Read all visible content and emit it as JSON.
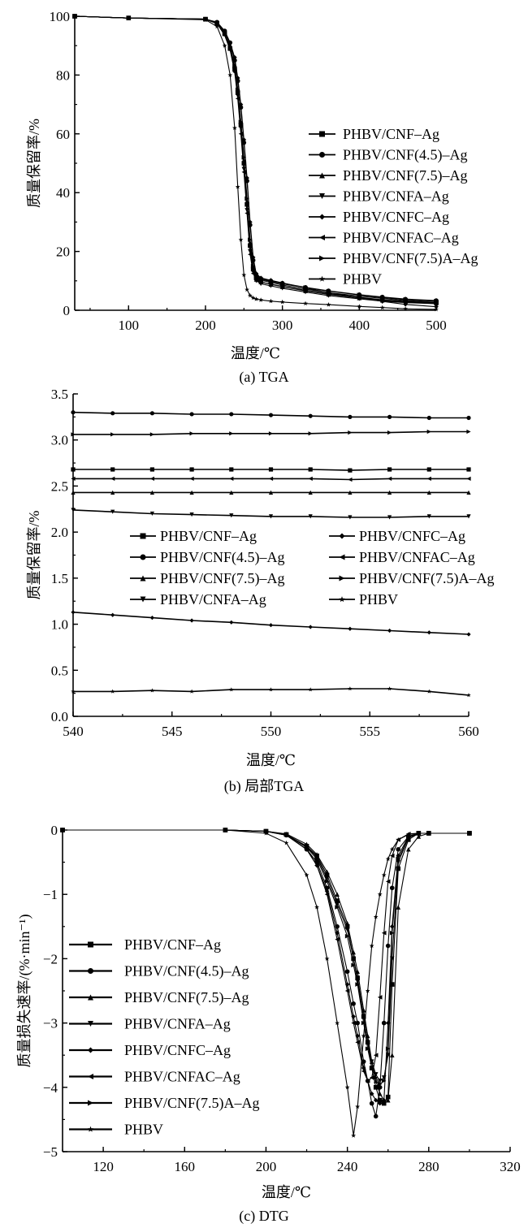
{
  "chart_data": [
    {
      "type": "line",
      "title": "(a) TGA",
      "xlabel": "温度/℃",
      "ylabel": "质量保留率/%",
      "xlim": [
        30,
        500
      ],
      "ylim": [
        0,
        100
      ],
      "xticks": [
        100,
        200,
        300,
        400,
        500
      ],
      "yticks": [
        0,
        20,
        40,
        60,
        80,
        100
      ],
      "grid": false,
      "legend_placement": "right",
      "x": [
        30,
        100,
        200,
        215,
        225,
        232,
        238,
        242,
        246,
        250,
        254,
        258,
        262,
        266,
        272,
        285,
        300,
        330,
        360,
        400,
        430,
        460,
        500
      ],
      "series": [
        {
          "name": "PHBV/CNF–Ag",
          "marker": "square",
          "values": [
            100,
            99.4,
            99,
            97.5,
            94,
            89,
            82,
            74,
            63,
            50,
            36,
            22,
            14,
            11,
            10.2,
            9.5,
            8.6,
            7.2,
            6.0,
            4.8,
            4.0,
            3.3,
            2.7
          ]
        },
        {
          "name": "PHBV/CNF(4.5)–Ag",
          "marker": "circle",
          "values": [
            100,
            99.4,
            99,
            98,
            95,
            91,
            85,
            78,
            69,
            57,
            44,
            29,
            17,
            12,
            10.8,
            10,
            9.2,
            7.8,
            6.6,
            5.3,
            4.5,
            3.8,
            3.3
          ]
        },
        {
          "name": "PHBV/CNF(7.5)–Ag",
          "marker": "triangle-up",
          "values": [
            100,
            99.4,
            99,
            97.8,
            94.5,
            90,
            83,
            75,
            64,
            51,
            37,
            23,
            14,
            10.5,
            9.6,
            8.8,
            8.0,
            6.6,
            5.4,
            4.2,
            3.4,
            2.8,
            2.4
          ]
        },
        {
          "name": "PHBV/CNFA–Ag",
          "marker": "triangle-down",
          "values": [
            100,
            99.4,
            99,
            97.6,
            94,
            89,
            82,
            73,
            62,
            48,
            34,
            20,
            13,
            10,
            9.0,
            8.3,
            7.5,
            6.2,
            5.0,
            3.9,
            3.1,
            2.6,
            2.2
          ]
        },
        {
          "name": "PHBV/CNFC–Ag",
          "marker": "diamond",
          "values": [
            100,
            99.4,
            99,
            97.8,
            95,
            91,
            86,
            79,
            70,
            58,
            45,
            30,
            18,
            12.5,
            11,
            10.2,
            9.3,
            7.6,
            6.0,
            4.3,
            3.0,
            2.0,
            1.2
          ]
        },
        {
          "name": "PHBV/CNFAC–Ag",
          "marker": "triangle-left",
          "values": [
            100,
            99.4,
            99,
            97.5,
            93.5,
            88.5,
            81,
            72,
            60,
            47,
            33,
            19,
            12.5,
            10.3,
            9.5,
            8.9,
            8.1,
            6.8,
            5.6,
            4.4,
            3.6,
            3.0,
            2.6
          ]
        },
        {
          "name": "PHBV/CNF(7.5)A–Ag",
          "marker": "triangle-right",
          "values": [
            100,
            99.4,
            99,
            97.7,
            94.3,
            89.5,
            83,
            75,
            64,
            52,
            38,
            24,
            15,
            11.5,
            10.5,
            9.8,
            9.0,
            7.7,
            6.5,
            5.2,
            4.3,
            3.6,
            3.1
          ]
        },
        {
          "name": "PHBV",
          "marker": "star",
          "values": [
            100,
            99.4,
            98.8,
            96.5,
            90,
            80,
            62,
            42,
            24,
            12,
            7,
            5,
            4.2,
            3.8,
            3.5,
            3.1,
            2.8,
            2.3,
            1.9,
            1.3,
            0.9,
            0.5,
            0.3
          ]
        }
      ]
    },
    {
      "type": "line",
      "title": "(b) 局部TGA",
      "xlabel": "温度/℃",
      "ylabel": "质量保留率/%",
      "xlim": [
        540,
        560
      ],
      "ylim": [
        0,
        3.5
      ],
      "xticks": [
        540,
        545,
        550,
        555,
        560
      ],
      "yticks": [
        "0.0",
        "0.5",
        "1.0",
        "1.5",
        "2.0",
        "2.5",
        "3.0",
        "3.5"
      ],
      "grid": false,
      "legend_placement": "center",
      "x": [
        540,
        542,
        544,
        546,
        548,
        550,
        552,
        554,
        556,
        558,
        560
      ],
      "series": [
        {
          "name": "PHBV/CNF–Ag",
          "marker": "square",
          "values": [
            2.68,
            2.68,
            2.68,
            2.68,
            2.68,
            2.68,
            2.68,
            2.67,
            2.68,
            2.68,
            2.68
          ]
        },
        {
          "name": "PHBV/CNF(4.5)–Ag",
          "marker": "circle",
          "values": [
            3.3,
            3.29,
            3.29,
            3.28,
            3.28,
            3.27,
            3.26,
            3.25,
            3.25,
            3.24,
            3.24
          ]
        },
        {
          "name": "PHBV/CNF(7.5)–Ag",
          "marker": "triangle-up",
          "values": [
            2.43,
            2.43,
            2.43,
            2.43,
            2.43,
            2.43,
            2.43,
            2.43,
            2.43,
            2.43,
            2.43
          ]
        },
        {
          "name": "PHBV/CNFA–Ag",
          "marker": "triangle-down",
          "values": [
            2.24,
            2.22,
            2.2,
            2.19,
            2.18,
            2.17,
            2.17,
            2.16,
            2.16,
            2.17,
            2.17
          ]
        },
        {
          "name": "PHBV/CNFC–Ag",
          "marker": "diamond",
          "values": [
            1.13,
            1.1,
            1.07,
            1.04,
            1.02,
            0.99,
            0.97,
            0.95,
            0.93,
            0.91,
            0.89
          ]
        },
        {
          "name": "PHBV/CNFAC–Ag",
          "marker": "triangle-left",
          "values": [
            2.58,
            2.58,
            2.58,
            2.58,
            2.58,
            2.58,
            2.58,
            2.57,
            2.58,
            2.58,
            2.58
          ]
        },
        {
          "name": "PHBV/CNF(7.5)A–Ag",
          "marker": "triangle-right",
          "values": [
            3.06,
            3.06,
            3.06,
            3.07,
            3.07,
            3.07,
            3.07,
            3.08,
            3.08,
            3.09,
            3.09
          ]
        },
        {
          "name": "PHBV",
          "marker": "star",
          "values": [
            0.27,
            0.27,
            0.28,
            0.27,
            0.29,
            0.29,
            0.29,
            0.3,
            0.3,
            0.27,
            0.23
          ]
        }
      ]
    },
    {
      "type": "line",
      "title": "(c) DTG",
      "xlabel": "温度/℃",
      "ylabel": "质量损失速率/(%·min⁻¹)",
      "xlim": [
        100,
        320
      ],
      "ylim": [
        -5,
        0
      ],
      "xticks": [
        120,
        160,
        200,
        240,
        280,
        320
      ],
      "yticks": [
        "−5",
        "−4",
        "−3",
        "−2",
        "−1",
        "0"
      ],
      "grid": false,
      "legend_placement": "left",
      "x": [
        100,
        180,
        200,
        210,
        220,
        225,
        230,
        235,
        240,
        243,
        245,
        248,
        250,
        252,
        254,
        256,
        258,
        260,
        262,
        265,
        270,
        275,
        280,
        300
      ],
      "series": [
        {
          "name": "PHBV/CNF–Ag",
          "marker": "square",
          "values": [
            0,
            0,
            -0.02,
            -0.07,
            -0.25,
            -0.4,
            -0.7,
            -1.1,
            -1.5,
            -2.0,
            -2.3,
            -2.9,
            -3.3,
            -3.7,
            -4.0,
            -4.2,
            -4.25,
            -4.15,
            -2.4,
            -0.6,
            -0.15,
            -0.05,
            -0.05,
            -0.05
          ]
        },
        {
          "name": "PHBV/CNF(4.5)–Ag",
          "marker": "circle",
          "values": [
            0,
            0,
            -0.02,
            -0.08,
            -0.3,
            -0.5,
            -0.9,
            -1.5,
            -2.2,
            -2.7,
            -3.0,
            -3.6,
            -3.9,
            -4.25,
            -4.45,
            -4.0,
            -3.0,
            -1.8,
            -0.9,
            -0.3,
            -0.1,
            -0.05,
            -0.05,
            -0.05
          ]
        },
        {
          "name": "PHBV/CNF(7.5)–Ag",
          "marker": "triangle-up",
          "values": [
            0,
            0,
            -0.02,
            -0.06,
            -0.22,
            -0.38,
            -0.65,
            -1.0,
            -1.45,
            -1.9,
            -2.2,
            -2.8,
            -3.2,
            -3.6,
            -3.9,
            -4.1,
            -4.2,
            -4.2,
            -3.5,
            -1.2,
            -0.3,
            -0.1,
            -0.05,
            -0.05
          ]
        },
        {
          "name": "PHBV/CNFA–Ag",
          "marker": "triangle-down",
          "values": [
            0,
            0,
            -0.02,
            -0.07,
            -0.26,
            -0.42,
            -0.75,
            -1.15,
            -1.55,
            -2.0,
            -2.35,
            -2.9,
            -3.3,
            -3.6,
            -3.8,
            -3.9,
            -3.85,
            -3.5,
            -2.0,
            -0.5,
            -0.12,
            -0.05,
            -0.05,
            -0.05
          ]
        },
        {
          "name": "PHBV/CNFC–Ag",
          "marker": "diamond",
          "values": [
            0,
            0,
            -0.02,
            -0.08,
            -0.3,
            -0.55,
            -0.95,
            -1.6,
            -2.4,
            -2.9,
            -3.2,
            -3.7,
            -3.9,
            -4.1,
            -4.2,
            -4.25,
            -4.2,
            -3.0,
            -1.5,
            -0.4,
            -0.1,
            -0.05,
            -0.05,
            -0.05
          ]
        },
        {
          "name": "PHBV/CNFAC–Ag",
          "marker": "triangle-left",
          "values": [
            0,
            0,
            -0.02,
            -0.08,
            -0.3,
            -0.55,
            -1.0,
            -1.7,
            -2.5,
            -3.0,
            -3.3,
            -3.75,
            -3.9,
            -3.85,
            -3.5,
            -2.6,
            -1.6,
            -0.8,
            -0.4,
            -0.15,
            -0.06,
            -0.05,
            -0.05,
            -0.05
          ]
        },
        {
          "name": "PHBV/CNF(7.5)A–Ag",
          "marker": "triangle-right",
          "values": [
            0,
            0,
            -0.02,
            -0.07,
            -0.27,
            -0.45,
            -0.8,
            -1.2,
            -1.65,
            -2.1,
            -2.4,
            -3.0,
            -3.4,
            -3.7,
            -3.85,
            -3.95,
            -3.9,
            -3.4,
            -1.6,
            -0.45,
            -0.12,
            -0.05,
            -0.05,
            -0.05
          ]
        },
        {
          "name": "PHBV",
          "marker": "star",
          "values": [
            0,
            0,
            -0.05,
            -0.2,
            -0.7,
            -1.2,
            -2.0,
            -3.0,
            -4.0,
            -4.75,
            -4.3,
            -3.2,
            -2.5,
            -1.8,
            -1.35,
            -1.0,
            -0.7,
            -0.45,
            -0.3,
            -0.15,
            -0.07,
            -0.05,
            -0.05,
            -0.05
          ]
        }
      ]
    }
  ]
}
